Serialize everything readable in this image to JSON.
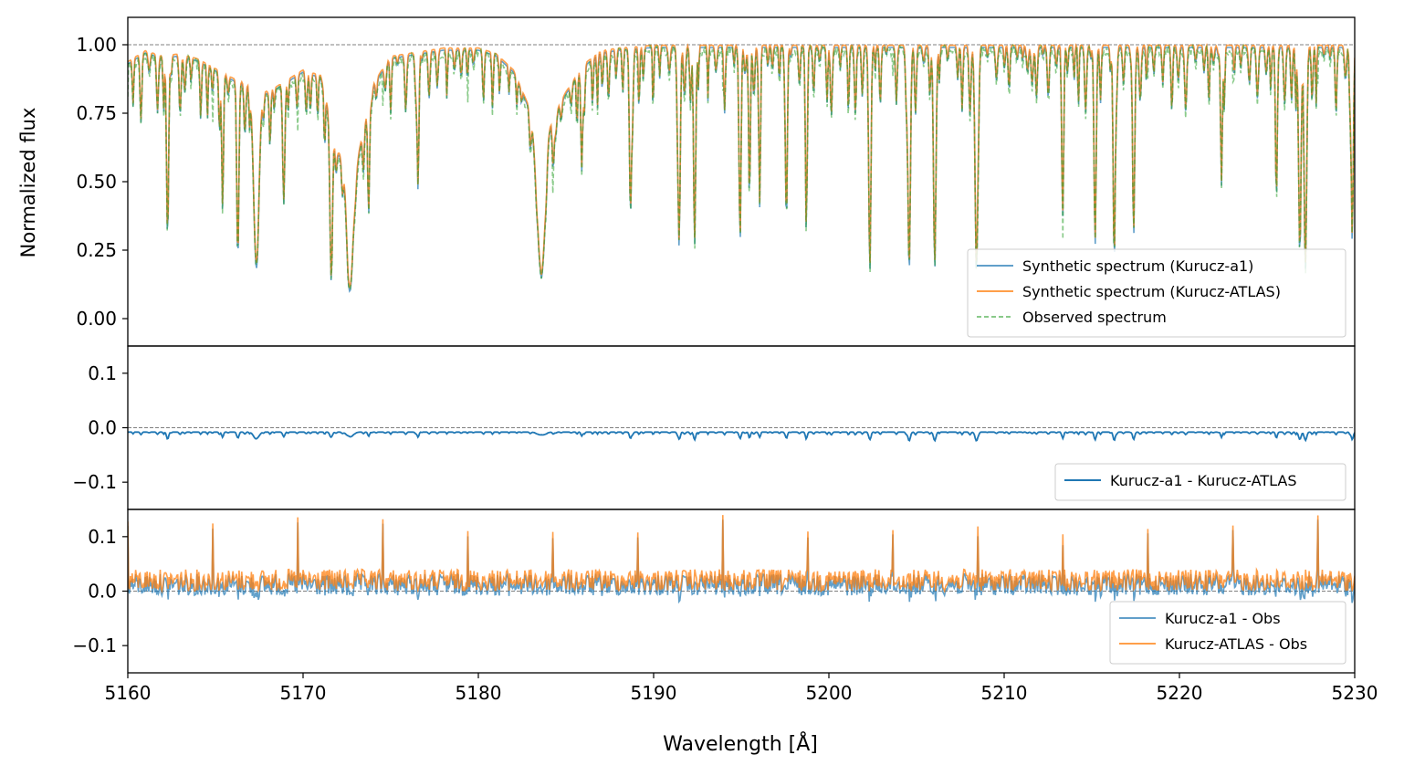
{
  "chart_data": [
    {
      "type": "line",
      "panel": "spectra",
      "ylabel": "Normalized flux",
      "xlabel": "",
      "xlim": [
        5160,
        5230
      ],
      "ylim": [
        -0.1,
        1.1
      ],
      "yticks": [
        0.0,
        0.25,
        0.5,
        0.75,
        1.0
      ],
      "ytick_labels": [
        "0.00",
        "0.25",
        "0.50",
        "0.75",
        "1.00"
      ],
      "reference_line": 1.0,
      "legend_position": "lower-right",
      "legend": [
        "Synthetic spectrum (Kurucz-a1)",
        "Synthetic spectrum (Kurucz-ATLAS)",
        "Observed spectrum"
      ],
      "colors": [
        "#1f77b4",
        "#ff7f0e",
        "#2ca02c"
      ],
      "continuum": [
        [
          5160,
          0.93
        ],
        [
          5161,
          0.97
        ],
        [
          5162,
          0.95
        ],
        [
          5163,
          0.96
        ],
        [
          5164,
          0.94
        ],
        [
          5166,
          0.87
        ],
        [
          5168,
          0.82
        ],
        [
          5170,
          0.9
        ],
        [
          5171,
          0.88
        ],
        [
          5172,
          0.6
        ],
        [
          5173,
          0.55
        ],
        [
          5174,
          0.85
        ],
        [
          5175,
          0.95
        ],
        [
          5177,
          0.97
        ],
        [
          5178,
          0.98
        ],
        [
          5180,
          0.98
        ],
        [
          5181,
          0.96
        ],
        [
          5182,
          0.9
        ],
        [
          5183,
          0.75
        ],
        [
          5183.6,
          0.4
        ],
        [
          5184,
          0.7
        ],
        [
          5185,
          0.82
        ],
        [
          5186,
          0.92
        ],
        [
          5187,
          0.97
        ],
        [
          5188,
          0.98
        ],
        [
          5190,
          0.99
        ],
        [
          5200,
          0.99
        ],
        [
          5230,
          0.99
        ]
      ],
      "lines": [
        {
          "w": 5162.27,
          "depth": 0.68,
          "width": 0.06
        },
        {
          "w": 5165.41,
          "depth": 0.55,
          "width": 0.05
        },
        {
          "w": 5166.28,
          "depth": 0.68,
          "width": 0.06
        },
        {
          "w": 5167.33,
          "depth": 0.76,
          "width": 0.15
        },
        {
          "w": 5168.9,
          "depth": 0.5,
          "width": 0.06
        },
        {
          "w": 5171.6,
          "depth": 0.75,
          "width": 0.07
        },
        {
          "w": 5172.68,
          "depth": 0.8,
          "width": 0.18
        },
        {
          "w": 5173.74,
          "depth": 0.5,
          "width": 0.05
        },
        {
          "w": 5176.56,
          "depth": 0.5,
          "width": 0.05
        },
        {
          "w": 5183.6,
          "depth": 0.62,
          "width": 0.2
        },
        {
          "w": 5184.27,
          "depth": 0.25,
          "width": 0.05
        },
        {
          "w": 5185.9,
          "depth": 0.4,
          "width": 0.05
        },
        {
          "w": 5188.68,
          "depth": 0.6,
          "width": 0.06
        },
        {
          "w": 5191.46,
          "depth": 0.7,
          "width": 0.06
        },
        {
          "w": 5192.34,
          "depth": 0.72,
          "width": 0.06
        },
        {
          "w": 5194.94,
          "depth": 0.65,
          "width": 0.05
        },
        {
          "w": 5195.47,
          "depth": 0.55,
          "width": 0.05
        },
        {
          "w": 5196.06,
          "depth": 0.5,
          "width": 0.04
        },
        {
          "w": 5197.58,
          "depth": 0.6,
          "width": 0.05
        },
        {
          "w": 5198.71,
          "depth": 0.65,
          "width": 0.05
        },
        {
          "w": 5202.34,
          "depth": 0.78,
          "width": 0.06
        },
        {
          "w": 5204.58,
          "depth": 0.82,
          "width": 0.07
        },
        {
          "w": 5206.04,
          "depth": 0.8,
          "width": 0.07
        },
        {
          "w": 5208.42,
          "depth": 0.82,
          "width": 0.08
        },
        {
          "w": 5213.35,
          "depth": 0.6,
          "width": 0.05
        },
        {
          "w": 5215.19,
          "depth": 0.72,
          "width": 0.06
        },
        {
          "w": 5216.28,
          "depth": 0.78,
          "width": 0.06
        },
        {
          "w": 5217.39,
          "depth": 0.68,
          "width": 0.06
        },
        {
          "w": 5222.4,
          "depth": 0.5,
          "width": 0.05
        },
        {
          "w": 5225.53,
          "depth": 0.55,
          "width": 0.05
        },
        {
          "w": 5226.87,
          "depth": 0.72,
          "width": 0.07
        },
        {
          "w": 5227.19,
          "depth": 0.8,
          "width": 0.07
        },
        {
          "w": 5229.86,
          "depth": 0.7,
          "width": 0.06
        }
      ]
    },
    {
      "type": "line",
      "panel": "synthetic-difference",
      "xlim": [
        5160,
        5230
      ],
      "ylim": [
        -0.15,
        0.15
      ],
      "yticks": [
        -0.1,
        0.0,
        0.1
      ],
      "ytick_labels": [
        "−0.1",
        "0.0",
        "0.1"
      ],
      "reference_line": 0.0,
      "legend_position": "lower-right",
      "legend": [
        "Kurucz-a1 - Kurucz-ATLAS"
      ],
      "colors": [
        "#1f77b4"
      ]
    },
    {
      "type": "line",
      "panel": "observed-residuals",
      "xlabel": "Wavelength [Å]",
      "xlim": [
        5160,
        5230
      ],
      "ylim": [
        -0.15,
        0.15
      ],
      "xticks": [
        5160,
        5170,
        5180,
        5190,
        5200,
        5210,
        5220,
        5230
      ],
      "xtick_labels": [
        "5160",
        "5170",
        "5180",
        "5190",
        "5200",
        "5210",
        "5220",
        "5230"
      ],
      "yticks": [
        -0.1,
        0.0,
        0.1
      ],
      "ytick_labels": [
        "−0.1",
        "0.0",
        "0.1"
      ],
      "reference_line": 0.0,
      "legend_position": "lower-right",
      "legend": [
        "Kurucz-a1 - Obs",
        "Kurucz-ATLAS - Obs"
      ],
      "colors": [
        "#1f77b4",
        "#ff7f0e"
      ]
    }
  ]
}
